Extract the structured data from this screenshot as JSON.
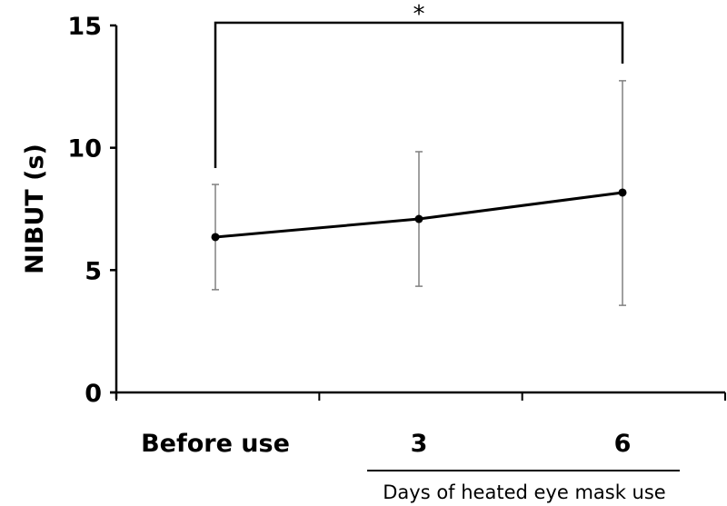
{
  "chart_data": {
    "type": "line",
    "title": "",
    "ylabel": "NIBUT (s)",
    "xlabel": "",
    "group_label": "Days of heated eye mask use",
    "categories": [
      "Before use",
      "3",
      "6"
    ],
    "ylim": [
      0,
      15
    ],
    "yticks": [
      0,
      5,
      10,
      15
    ],
    "grid": false,
    "series": [
      {
        "values": [
          6.35,
          7.09,
          8.17
        ],
        "error_upper": [
          8.5,
          9.84,
          12.74
        ],
        "error_lower": [
          4.2,
          4.34,
          3.56
        ],
        "color": "#000000",
        "error_color": "#808080"
      }
    ],
    "annotations": [
      {
        "type": "significance-bracket",
        "from": "Before use",
        "to": "6",
        "label": "*"
      }
    ]
  }
}
